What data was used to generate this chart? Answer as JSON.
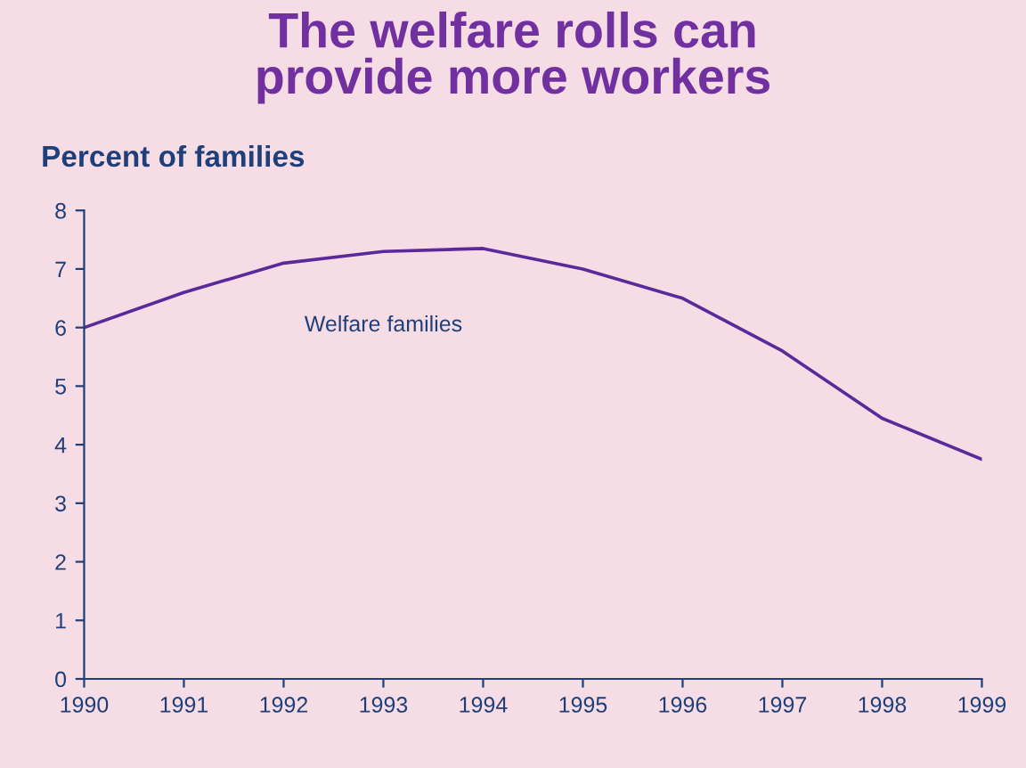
{
  "chart_data": {
    "type": "line",
    "title": "The welfare rolls can\nprovide more workers",
    "ylabel": "Percent of families",
    "x": [
      1990,
      1991,
      1992,
      1993,
      1994,
      1995,
      1996,
      1997,
      1998,
      1999
    ],
    "series": [
      {
        "name": "Welfare families",
        "color": "#5b2a9a",
        "values": [
          6.0,
          6.6,
          7.1,
          7.3,
          7.35,
          7.0,
          6.5,
          5.6,
          4.45,
          3.75
        ]
      }
    ],
    "xlim": [
      1990,
      1999
    ],
    "xticks": [
      1990,
      1991,
      1992,
      1993,
      1994,
      1995,
      1996,
      1997,
      1998,
      1999
    ],
    "ylim": [
      0,
      8
    ],
    "yticks": [
      0,
      1,
      2,
      3,
      4,
      5,
      6,
      7,
      8
    ],
    "grid": false,
    "legend": false,
    "marker": "none",
    "line_style": "solid"
  }
}
